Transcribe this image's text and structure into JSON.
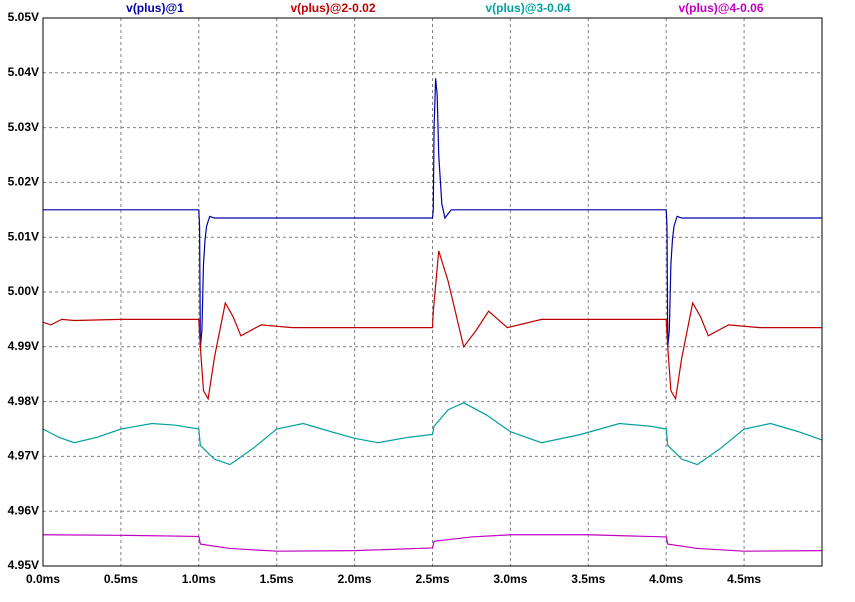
{
  "chart_data": {
    "type": "line",
    "grid": true,
    "xlim": [
      0,
      5
    ],
    "ylim": [
      4.95,
      5.05
    ],
    "xticks": [
      {
        "value": 0,
        "label": "0.0ms"
      },
      {
        "value": 0.5,
        "label": "0.5ms"
      },
      {
        "value": 1.0,
        "label": "1.0ms"
      },
      {
        "value": 1.5,
        "label": "1.5ms"
      },
      {
        "value": 2.0,
        "label": "2.0ms"
      },
      {
        "value": 2.5,
        "label": "2.5ms"
      },
      {
        "value": 3.0,
        "label": "3.0ms"
      },
      {
        "value": 3.5,
        "label": "3.5ms"
      },
      {
        "value": 4.0,
        "label": "4.0ms"
      },
      {
        "value": 4.5,
        "label": "4.5ms"
      }
    ],
    "yticks": [
      {
        "value": 4.95,
        "label": "4.95V"
      },
      {
        "value": 4.96,
        "label": "4.96V"
      },
      {
        "value": 4.97,
        "label": "4.97V"
      },
      {
        "value": 4.98,
        "label": "4.98V"
      },
      {
        "value": 4.99,
        "label": "4.99V"
      },
      {
        "value": 5.0,
        "label": "5.00V"
      },
      {
        "value": 5.01,
        "label": "5.01V"
      },
      {
        "value": 5.02,
        "label": "5.02V"
      },
      {
        "value": 5.03,
        "label": "5.03V"
      },
      {
        "value": 5.04,
        "label": "5.04V"
      },
      {
        "value": 5.05,
        "label": "5.05V"
      }
    ],
    "series": [
      {
        "name": "v(plus)@1",
        "color": "#0000a8",
        "x": [
          0,
          1.0,
          1.005,
          1.01,
          1.02,
          1.03,
          1.04,
          1.05,
          1.07,
          1.1,
          2.5,
          2.505,
          2.51,
          2.52,
          2.53,
          2.54,
          2.56,
          2.58,
          2.62,
          4.0,
          4.005,
          4.01,
          4.02,
          4.03,
          4.04,
          4.05,
          4.07,
          4.1,
          5.0
        ],
        "values": [
          5.015,
          5.015,
          5.012,
          4.99,
          4.993,
          5.005,
          5.0095,
          5.012,
          5.0138,
          5.0135,
          5.0135,
          5.015,
          5.03,
          5.039,
          5.036,
          5.025,
          5.016,
          5.0135,
          5.015,
          5.015,
          5.012,
          4.99,
          4.993,
          5.005,
          5.0095,
          5.012,
          5.0138,
          5.0135,
          5.0135
        ]
      },
      {
        "name": "v(plus)@2-0.02",
        "color": "#c00000",
        "x": [
          0,
          0.05,
          0.12,
          0.2,
          0.5,
          1.0,
          1.01,
          1.03,
          1.06,
          1.1,
          1.17,
          1.22,
          1.27,
          1.4,
          1.6,
          2.5,
          2.505,
          2.54,
          2.6,
          2.7,
          2.78,
          2.86,
          2.98,
          3.2,
          4.0,
          4.01,
          4.03,
          4.06,
          4.1,
          4.17,
          4.22,
          4.27,
          4.4,
          4.6,
          5.0
        ],
        "values": [
          4.9945,
          4.994,
          4.995,
          4.9948,
          4.995,
          4.995,
          4.99,
          4.982,
          4.9805,
          4.988,
          4.998,
          4.9955,
          4.992,
          4.994,
          4.9935,
          4.9935,
          4.9965,
          5.0075,
          5.002,
          4.99,
          4.993,
          4.9965,
          4.9935,
          4.995,
          4.995,
          4.99,
          4.982,
          4.9805,
          4.988,
          4.998,
          4.9955,
          4.992,
          4.994,
          4.9935,
          4.9935
        ]
      },
      {
        "name": "v(plus)@3-0.04",
        "color": "#00a0a0",
        "x": [
          0,
          0.1,
          0.2,
          0.35,
          0.5,
          0.7,
          0.85,
          1.0,
          1.01,
          1.1,
          1.2,
          1.35,
          1.5,
          1.67,
          1.85,
          2.0,
          2.15,
          2.35,
          2.5,
          2.51,
          2.6,
          2.7,
          2.85,
          3.0,
          3.2,
          3.45,
          3.7,
          3.9,
          4.0,
          4.01,
          4.1,
          4.2,
          4.35,
          4.5,
          4.67,
          4.85,
          5.0
        ],
        "values": [
          4.975,
          4.9735,
          4.9725,
          4.9735,
          4.975,
          4.976,
          4.9757,
          4.975,
          4.972,
          4.9695,
          4.9685,
          4.9715,
          4.975,
          4.976,
          4.9745,
          4.9733,
          4.9725,
          4.9735,
          4.974,
          4.9755,
          4.9785,
          4.9798,
          4.9775,
          4.9745,
          4.9725,
          4.974,
          4.976,
          4.9755,
          4.975,
          4.972,
          4.9695,
          4.9685,
          4.9715,
          4.975,
          4.976,
          4.9745,
          4.973
        ]
      },
      {
        "name": "v(plus)@4-0.06",
        "color": "#c000c0",
        "x": [
          0,
          0.5,
          1.0,
          1.01,
          1.2,
          1.5,
          2.0,
          2.5,
          2.51,
          2.75,
          3.0,
          3.5,
          4.0,
          4.01,
          4.2,
          4.5,
          5.0
        ],
        "values": [
          4.9557,
          4.9556,
          4.9554,
          4.954,
          4.9532,
          4.9527,
          4.9528,
          4.9533,
          4.9545,
          4.9553,
          4.9557,
          4.9557,
          4.9553,
          4.954,
          4.9532,
          4.9527,
          4.9528
        ]
      }
    ]
  }
}
